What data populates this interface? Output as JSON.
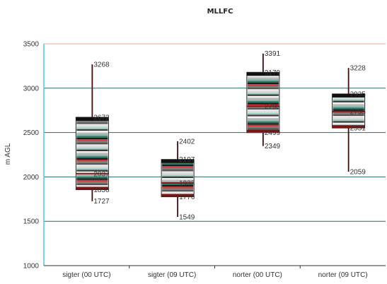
{
  "chart_data": {
    "type": "box",
    "title": "MLLFC",
    "ylabel": "m AGL",
    "xlabel": "",
    "ylim": [
      1000,
      3500
    ],
    "yticks": [
      1000,
      1500,
      2000,
      2500,
      3000,
      3500
    ],
    "grid": true,
    "categories": [
      "sigter (00 UTC)",
      "sigter (09 UTC)",
      "norter (00 UTC)",
      "norter (09 UTC)"
    ],
    "boxes": [
      {
        "category": "sigter (00 UTC)",
        "whisker_low": 1727,
        "q1": 1856,
        "median": 2037,
        "q3": 2672,
        "whisker_high": 3268,
        "labels": [
          "3268",
          "2672",
          "2037",
          "1856",
          "1727"
        ]
      },
      {
        "category": "sigter (09 UTC)",
        "whisker_low": 1549,
        "q1": 1776,
        "median": 1933,
        "q3": 2197,
        "whisker_high": 2402,
        "labels": [
          "2402",
          "2197",
          "1933",
          "1776",
          "1549"
        ]
      },
      {
        "category": "norter (00 UTC)",
        "whisker_low": 2349,
        "q1": 2499,
        "median": 2795,
        "q3": 3179,
        "whisker_high": 3391,
        "labels": [
          "3391",
          "3179",
          "2795",
          "2499",
          "2349"
        ]
      },
      {
        "category": "norter (09 UTC)",
        "whisker_low": 2059,
        "q1": 2551,
        "median": 2735,
        "q3": 2935,
        "whisker_high": 3228,
        "labels": [
          "3228",
          "2935",
          "2735",
          "2551",
          "2059"
        ]
      }
    ]
  }
}
